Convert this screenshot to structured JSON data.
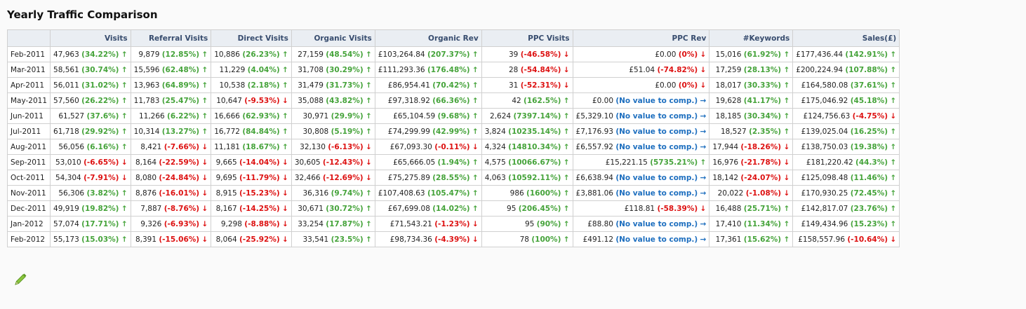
{
  "title": "Yearly Traffic Comparison",
  "columns": [
    "",
    "Visits",
    "Referral Visits",
    "Direct Visits",
    "Organic Visits",
    "Organic Rev",
    "PPC Visits",
    "PPC Rev",
    "#Keywords",
    "Sales(£)"
  ],
  "column_widths": [],
  "rows": [
    {
      "month": "Feb-2011",
      "cells": [
        {
          "v": "47,963",
          "c": "(34.22%)",
          "t": "up"
        },
        {
          "v": "9,879",
          "c": "(12.85%)",
          "t": "up"
        },
        {
          "v": "10,886",
          "c": "(26.23%)",
          "t": "up"
        },
        {
          "v": "27,159",
          "c": "(48.54%)",
          "t": "up"
        },
        {
          "v": "£103,264.84",
          "c": "(207.37%)",
          "t": "up"
        },
        {
          "v": "39",
          "c": "(-46.58%)",
          "t": "down"
        },
        {
          "v": "£0.00",
          "c": "(0%)",
          "t": "down"
        },
        {
          "v": "15,016",
          "c": "(61.92%)",
          "t": "up"
        },
        {
          "v": "£177,436.44",
          "c": "(142.91%)",
          "t": "up"
        }
      ]
    },
    {
      "month": "Mar-2011",
      "cells": [
        {
          "v": "58,561",
          "c": "(30.74%)",
          "t": "up"
        },
        {
          "v": "15,596",
          "c": "(62.48%)",
          "t": "up"
        },
        {
          "v": "11,229",
          "c": "(4.04%)",
          "t": "up"
        },
        {
          "v": "31,708",
          "c": "(30.29%)",
          "t": "up"
        },
        {
          "v": "£111,293.36",
          "c": "(176.48%)",
          "t": "up"
        },
        {
          "v": "28",
          "c": "(-54.84%)",
          "t": "down"
        },
        {
          "v": "£51.04",
          "c": "(-74.82%)",
          "t": "down"
        },
        {
          "v": "17,259",
          "c": "(28.13%)",
          "t": "up"
        },
        {
          "v": "£200,224.94",
          "c": "(107.88%)",
          "t": "up"
        }
      ]
    },
    {
      "month": "Apr-2011",
      "cells": [
        {
          "v": "56,011",
          "c": "(31.02%)",
          "t": "up"
        },
        {
          "v": "13,963",
          "c": "(64.89%)",
          "t": "up"
        },
        {
          "v": "10,538",
          "c": "(2.18%)",
          "t": "up"
        },
        {
          "v": "31,479",
          "c": "(31.73%)",
          "t": "up"
        },
        {
          "v": "£86,954.41",
          "c": "(70.42%)",
          "t": "up"
        },
        {
          "v": "31",
          "c": "(-52.31%)",
          "t": "down"
        },
        {
          "v": "£0.00",
          "c": "(0%)",
          "t": "down"
        },
        {
          "v": "18,017",
          "c": "(30.33%)",
          "t": "up"
        },
        {
          "v": "£164,580.08",
          "c": "(37.61%)",
          "t": "up"
        }
      ]
    },
    {
      "month": "May-2011",
      "cells": [
        {
          "v": "57,560",
          "c": "(26.22%)",
          "t": "up"
        },
        {
          "v": "11,783",
          "c": "(25.47%)",
          "t": "up"
        },
        {
          "v": "10,647",
          "c": "(-9.53%)",
          "t": "down"
        },
        {
          "v": "35,088",
          "c": "(43.82%)",
          "t": "up"
        },
        {
          "v": "£97,318.92",
          "c": "(66.36%)",
          "t": "up"
        },
        {
          "v": "42",
          "c": "(162.5%)",
          "t": "up"
        },
        {
          "v": "£0.00",
          "c": "(No value to comp.)",
          "t": "none"
        },
        {
          "v": "19,628",
          "c": "(41.17%)",
          "t": "up"
        },
        {
          "v": "£175,046.92",
          "c": "(45.18%)",
          "t": "up"
        }
      ]
    },
    {
      "month": "Jun-2011",
      "cells": [
        {
          "v": "61,527",
          "c": "(37.6%)",
          "t": "up"
        },
        {
          "v": "11,266",
          "c": "(6.22%)",
          "t": "up"
        },
        {
          "v": "16,666",
          "c": "(62.93%)",
          "t": "up"
        },
        {
          "v": "30,971",
          "c": "(29.9%)",
          "t": "up"
        },
        {
          "v": "£65,104.59",
          "c": "(9.68%)",
          "t": "up"
        },
        {
          "v": "2,624",
          "c": "(7397.14%)",
          "t": "up"
        },
        {
          "v": "£5,329.10",
          "c": "(No value to comp.)",
          "t": "none"
        },
        {
          "v": "18,185",
          "c": "(30.34%)",
          "t": "up"
        },
        {
          "v": "£124,756.63",
          "c": "(-4.75%)",
          "t": "down"
        }
      ]
    },
    {
      "month": "Jul-2011",
      "cells": [
        {
          "v": "61,718",
          "c": "(29.92%)",
          "t": "up"
        },
        {
          "v": "10,314",
          "c": "(13.27%)",
          "t": "up"
        },
        {
          "v": "16,772",
          "c": "(84.84%)",
          "t": "up"
        },
        {
          "v": "30,808",
          "c": "(5.19%)",
          "t": "up"
        },
        {
          "v": "£74,299.99",
          "c": "(42.99%)",
          "t": "up"
        },
        {
          "v": "3,824",
          "c": "(10235.14%)",
          "t": "up"
        },
        {
          "v": "£7,176.93",
          "c": "(No value to comp.)",
          "t": "none"
        },
        {
          "v": "18,527",
          "c": "(2.35%)",
          "t": "up"
        },
        {
          "v": "£139,025.04",
          "c": "(16.25%)",
          "t": "up"
        }
      ]
    },
    {
      "month": "Aug-2011",
      "cells": [
        {
          "v": "56,056",
          "c": "(6.16%)",
          "t": "up"
        },
        {
          "v": "8,421",
          "c": "(-7.66%)",
          "t": "down"
        },
        {
          "v": "11,181",
          "c": "(18.67%)",
          "t": "up"
        },
        {
          "v": "32,130",
          "c": "(-6.13%)",
          "t": "down"
        },
        {
          "v": "£67,093.30",
          "c": "(-0.11%)",
          "t": "down"
        },
        {
          "v": "4,324",
          "c": "(14810.34%)",
          "t": "up"
        },
        {
          "v": "£6,557.92",
          "c": "(No value to comp.)",
          "t": "none"
        },
        {
          "v": "17,944",
          "c": "(-18.26%)",
          "t": "down"
        },
        {
          "v": "£138,750.03",
          "c": "(19.38%)",
          "t": "up"
        }
      ]
    },
    {
      "month": "Sep-2011",
      "cells": [
        {
          "v": "53,010",
          "c": "(-6.65%)",
          "t": "down"
        },
        {
          "v": "8,164",
          "c": "(-22.59%)",
          "t": "down"
        },
        {
          "v": "9,665",
          "c": "(-14.04%)",
          "t": "down"
        },
        {
          "v": "30,605",
          "c": "(-12.43%)",
          "t": "down"
        },
        {
          "v": "£65,666.05",
          "c": "(1.94%)",
          "t": "up"
        },
        {
          "v": "4,575",
          "c": "(10066.67%)",
          "t": "up"
        },
        {
          "v": "£15,221.15",
          "c": "(5735.21%)",
          "t": "up"
        },
        {
          "v": "16,976",
          "c": "(-21.78%)",
          "t": "down"
        },
        {
          "v": "£181,220.42",
          "c": "(44.3%)",
          "t": "up"
        }
      ]
    },
    {
      "month": "Oct-2011",
      "cells": [
        {
          "v": "54,304",
          "c": "(-7.91%)",
          "t": "down"
        },
        {
          "v": "8,080",
          "c": "(-24.84%)",
          "t": "down"
        },
        {
          "v": "9,695",
          "c": "(-11.79%)",
          "t": "down"
        },
        {
          "v": "32,466",
          "c": "(-12.69%)",
          "t": "down"
        },
        {
          "v": "£75,275.89",
          "c": "(28.55%)",
          "t": "up"
        },
        {
          "v": "4,063",
          "c": "(10592.11%)",
          "t": "up"
        },
        {
          "v": "£6,638.94",
          "c": "(No value to comp.)",
          "t": "none"
        },
        {
          "v": "18,142",
          "c": "(-24.07%)",
          "t": "down"
        },
        {
          "v": "£125,098.48",
          "c": "(11.46%)",
          "t": "up"
        }
      ]
    },
    {
      "month": "Nov-2011",
      "cells": [
        {
          "v": "56,306",
          "c": "(3.82%)",
          "t": "up"
        },
        {
          "v": "8,876",
          "c": "(-16.01%)",
          "t": "down"
        },
        {
          "v": "8,915",
          "c": "(-15.23%)",
          "t": "down"
        },
        {
          "v": "36,316",
          "c": "(9.74%)",
          "t": "up"
        },
        {
          "v": "£107,408.63",
          "c": "(105.47%)",
          "t": "up"
        },
        {
          "v": "986",
          "c": "(1600%)",
          "t": "up"
        },
        {
          "v": "£3,881.06",
          "c": "(No value to comp.)",
          "t": "none"
        },
        {
          "v": "20,022",
          "c": "(-1.08%)",
          "t": "down"
        },
        {
          "v": "£170,930.25",
          "c": "(72.45%)",
          "t": "up"
        }
      ]
    },
    {
      "month": "Dec-2011",
      "cells": [
        {
          "v": "49,919",
          "c": "(19.82%)",
          "t": "up"
        },
        {
          "v": "7,887",
          "c": "(-8.76%)",
          "t": "down"
        },
        {
          "v": "8,167",
          "c": "(-14.25%)",
          "t": "down"
        },
        {
          "v": "30,671",
          "c": "(30.72%)",
          "t": "up"
        },
        {
          "v": "£67,699.08",
          "c": "(14.02%)",
          "t": "up"
        },
        {
          "v": "95",
          "c": "(206.45%)",
          "t": "up"
        },
        {
          "v": "£118.81",
          "c": "(-58.39%)",
          "t": "down"
        },
        {
          "v": "16,488",
          "c": "(25.71%)",
          "t": "up"
        },
        {
          "v": "£142,817.07",
          "c": "(23.76%)",
          "t": "up"
        }
      ]
    },
    {
      "month": "Jan-2012",
      "cells": [
        {
          "v": "57,074",
          "c": "(17.71%)",
          "t": "up"
        },
        {
          "v": "9,326",
          "c": "(-6.93%)",
          "t": "down"
        },
        {
          "v": "9,298",
          "c": "(-8.88%)",
          "t": "down"
        },
        {
          "v": "33,254",
          "c": "(17.87%)",
          "t": "up"
        },
        {
          "v": "£71,543.21",
          "c": "(-1.23%)",
          "t": "down"
        },
        {
          "v": "95",
          "c": "(90%)",
          "t": "up"
        },
        {
          "v": "£88.80",
          "c": "(No value to comp.)",
          "t": "none"
        },
        {
          "v": "17,410",
          "c": "(11.34%)",
          "t": "up"
        },
        {
          "v": "£149,434.96",
          "c": "(15.23%)",
          "t": "up"
        }
      ]
    },
    {
      "month": "Feb-2012",
      "cells": [
        {
          "v": "55,173",
          "c": "(15.03%)",
          "t": "up"
        },
        {
          "v": "8,391",
          "c": "(-15.06%)",
          "t": "down"
        },
        {
          "v": "8,064",
          "c": "(-25.92%)",
          "t": "down"
        },
        {
          "v": "33,541",
          "c": "(23.5%)",
          "t": "up"
        },
        {
          "v": "£98,734.36",
          "c": "(-4.39%)",
          "t": "down"
        },
        {
          "v": "78",
          "c": "(100%)",
          "t": "up"
        },
        {
          "v": "£491.12",
          "c": "(No value to comp.)",
          "t": "none"
        },
        {
          "v": "17,361",
          "c": "(15.62%)",
          "t": "up"
        },
        {
          "v": "£158,557.96",
          "c": "(-10.64%)",
          "t": "down"
        }
      ]
    }
  ],
  "colors": {
    "positive": "#45a33a",
    "negative": "#dd1111",
    "neutral": "#1e6fbf",
    "header_bg": "#eaeef3"
  },
  "icons": {
    "edit": "pencil-icon",
    "up": "arrow-up-icon",
    "down": "arrow-down-icon",
    "none": "arrow-right-icon"
  }
}
